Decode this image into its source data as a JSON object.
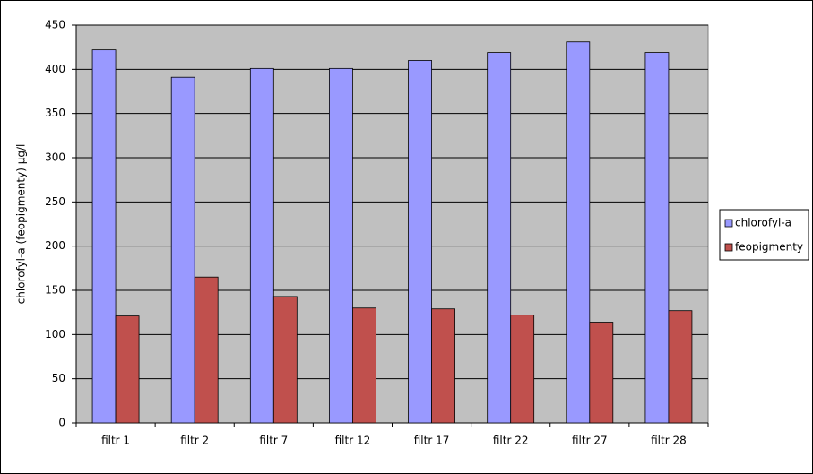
{
  "chart_data": {
    "type": "bar",
    "y_label": "chlorofyl-a (feopigmenty) µg/l",
    "categories": [
      "filtr 1",
      "filtr 2",
      "filtr 7",
      "filtr 12",
      "filtr 17",
      "filtr 22",
      "filtr 27",
      "filtr 28"
    ],
    "series": [
      {
        "name": "chlorofyl-a",
        "color": "#9999ff",
        "values": [
          422,
          391,
          401,
          401,
          410,
          419,
          431,
          419
        ]
      },
      {
        "name": "feopigmenty",
        "color": "#c0504d",
        "values": [
          121,
          165,
          143,
          130,
          129,
          122,
          114,
          127
        ]
      }
    ],
    "ylim": [
      0,
      450
    ],
    "yticks": [
      0,
      50,
      100,
      150,
      200,
      250,
      300,
      350,
      400,
      450
    ],
    "grid": true,
    "legend": "right"
  }
}
